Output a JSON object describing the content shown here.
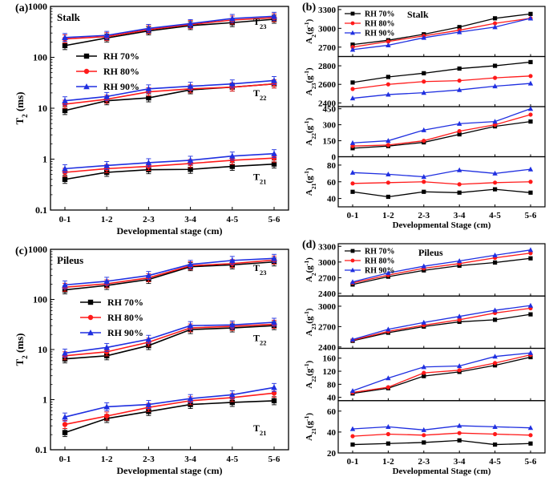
{
  "colors": {
    "rh70": "#000000",
    "rh80": "#ff1a1a",
    "rh90": "#1f2fe0"
  },
  "chart_data": [
    {
      "panel": "(a)",
      "title": "Stalk",
      "type": "line",
      "scale": "log",
      "xlabel": "Developmental stage (cm)",
      "ylabel": "T",
      "ylim": [
        0.1,
        1000
      ],
      "yticks": [
        "0.1",
        "1",
        "10",
        "100",
        "1000"
      ],
      "categories": [
        "0-1",
        "1-2",
        "2-3",
        "3-4",
        "4-5",
        "5-6"
      ],
      "legend": [
        "RH 70%",
        "RH 80%",
        "RH 90%"
      ],
      "annotations": [
        {
          "text": "T",
          "sub": "23"
        },
        {
          "text": "T",
          "sub": "22"
        },
        {
          "text": "T",
          "sub": "21"
        }
      ],
      "groups": [
        {
          "label_value": 500,
          "series": [
            [
              170,
              240,
              330,
              420,
              480,
              560
            ],
            [
              230,
              255,
              350,
              440,
              540,
              600
            ],
            [
              245,
              270,
              370,
              460,
              580,
              640
            ]
          ]
        },
        {
          "label_value": 20,
          "series": [
            [
              9,
              14,
              16,
              23,
              26,
              30
            ],
            [
              12,
              15,
              21,
              24,
              26,
              30
            ],
            [
              14,
              17,
              24,
              27,
              30,
              35
            ]
          ]
        },
        {
          "label_value": 0.45,
          "series": [
            [
              0.4,
              0.55,
              0.62,
              0.63,
              0.72,
              0.8
            ],
            [
              0.55,
              0.65,
              0.72,
              0.82,
              0.95,
              1.05
            ],
            [
              0.65,
              0.75,
              0.85,
              0.95,
              1.15,
              1.28
            ]
          ]
        }
      ]
    },
    {
      "panel": "(c)",
      "title": "Pileus",
      "type": "line",
      "scale": "log",
      "xlabel": "Developmental stage (cm)",
      "ylabel": "T",
      "ylim": [
        0.1,
        1000
      ],
      "yticks": [
        "0.1",
        "1",
        "10",
        "100",
        "1000"
      ],
      "categories": [
        "0-1",
        "1-2",
        "2-3",
        "3-4",
        "4-5",
        "5-6"
      ],
      "legend": [
        "RH 70%",
        "RH 80%",
        "RH 90%"
      ],
      "annotations": [
        {
          "text": "T",
          "sub": "23"
        },
        {
          "text": "T",
          "sub": "22"
        },
        {
          "text": "T",
          "sub": "21"
        }
      ],
      "groups": [
        {
          "label_value": 430,
          "series": [
            [
              155,
              190,
              250,
              450,
              490,
              560
            ],
            [
              175,
              205,
              270,
              470,
              520,
              610
            ],
            [
              195,
              230,
              300,
              500,
              600,
              660
            ]
          ]
        },
        {
          "label_value": 17,
          "series": [
            [
              6.5,
              7.5,
              12,
              25,
              27,
              30
            ],
            [
              7.5,
              9,
              14,
              27,
              29,
              32
            ],
            [
              8.5,
              11,
              16,
              30,
              31,
              35
            ]
          ]
        },
        {
          "label_value": 0.27,
          "series": [
            [
              0.22,
              0.42,
              0.58,
              0.8,
              0.88,
              0.95
            ],
            [
              0.32,
              0.47,
              0.7,
              0.95,
              1.1,
              1.35
            ],
            [
              0.45,
              0.72,
              0.8,
              1.05,
              1.25,
              1.75
            ]
          ]
        }
      ]
    },
    {
      "panel": "(b)",
      "title": "Stalk",
      "type": "line",
      "stacked_panels": true,
      "xlabel": "Developmental Stage (cm)",
      "categories": [
        "0-1",
        "1-2",
        "2-3",
        "3-4",
        "4-5",
        "5-6"
      ],
      "legend": [
        "RH 70%",
        "RH 80%",
        "RH 90%"
      ],
      "subplots": [
        {
          "ylabel": {
            "text": "A",
            "sub": "2",
            "unit": "(g",
            "sup": "-1",
            "close": ")"
          },
          "ylim": [
            2550,
            3350
          ],
          "yticks": [
            2700,
            3000,
            3300
          ],
          "series": [
            [
              2740,
              2810,
              2905,
              3020,
              3160,
              3230
            ],
            [
              2700,
              2790,
              2880,
              2970,
              3080,
              3160
            ],
            [
              2660,
              2730,
              2850,
              2940,
              3020,
              3160
            ]
          ]
        },
        {
          "ylabel": {
            "text": "A",
            "sub": "23",
            "unit": "(g",
            "sup": "-1",
            "close": ")"
          },
          "ylim": [
            2360,
            2900
          ],
          "yticks": [
            2400,
            2600,
            2800
          ],
          "series": [
            [
              2620,
              2680,
              2720,
              2770,
              2800,
              2840
            ],
            [
              2550,
              2600,
              2630,
              2640,
              2670,
              2690
            ],
            [
              2450,
              2490,
              2510,
              2540,
              2580,
              2610
            ]
          ]
        },
        {
          "ylabel": {
            "text": "A",
            "sub": "22",
            "unit": "(g",
            "sup": "-1",
            "close": ")"
          },
          "ylim": [
            0,
            470
          ],
          "yticks": [
            0,
            150,
            300,
            450
          ],
          "series": [
            [
              80,
              100,
              135,
              210,
              285,
              330
            ],
            [
              100,
              110,
              150,
              240,
              300,
              395
            ],
            [
              130,
              150,
              250,
              310,
              330,
              450
            ]
          ]
        },
        {
          "ylabel": {
            "text": "A",
            "sub": "21",
            "unit": "(g",
            "sup": "-1",
            "close": ")"
          },
          "ylim": [
            30,
            90
          ],
          "yticks": [
            40,
            60,
            80
          ],
          "series": [
            [
              48,
              42,
              48,
              47,
              51,
              47
            ],
            [
              58,
              59,
              60,
              57,
              59,
              60
            ],
            [
              71,
              69,
              66,
              74,
              70,
              75
            ]
          ]
        }
      ]
    },
    {
      "panel": "(d)",
      "title": "Pileus",
      "type": "line",
      "stacked_panels": true,
      "xlabel": "Developmental Stage (cm)",
      "categories": [
        "0-1",
        "1-2",
        "2-3",
        "3-4",
        "4-5",
        "5-6"
      ],
      "legend": [
        "RH 70%",
        "RH 80%",
        "RH 90%"
      ],
      "subplots": [
        {
          "ylabel": {
            "text": "A",
            "sub": "2",
            "unit": "(g",
            "sup": "-1",
            "close": ")"
          },
          "ylim": [
            2350,
            3350
          ],
          "yticks": [
            2400,
            2700,
            3000,
            3300
          ],
          "series": [
            [
              2570,
              2720,
              2840,
              2930,
              2990,
              3070
            ],
            [
              2600,
              2750,
              2880,
              2970,
              3080,
              3170
            ],
            [
              2620,
              2790,
              2920,
              3020,
              3130,
              3230
            ]
          ]
        },
        {
          "ylabel": {
            "text": "A",
            "sub": "23",
            "unit": "(g",
            "sup": "-1",
            "close": ")"
          },
          "ylim": [
            2380,
            3150
          ],
          "yticks": [
            2400,
            2700,
            3000
          ],
          "series": [
            [
              2490,
              2610,
              2700,
              2770,
              2800,
              2880
            ],
            [
              2500,
              2630,
              2720,
              2800,
              2900,
              2970
            ],
            [
              2510,
              2660,
              2760,
              2850,
              2940,
              3010
            ]
          ]
        },
        {
          "ylabel": {
            "text": "A",
            "sub": "22",
            "unit": "(g",
            "sup": "-1",
            "close": ")"
          },
          "ylim": [
            30,
            190
          ],
          "yticks": [
            40,
            80,
            120,
            160
          ],
          "series": [
            [
              52,
              68,
              105,
              118,
              138,
              163
            ],
            [
              55,
              71,
              115,
              123,
              145,
              170
            ],
            [
              60,
              99,
              133,
              136,
              165,
              176
            ]
          ]
        },
        {
          "ylabel": {
            "text": "A",
            "sub": "21",
            "unit": "(g",
            "sup": "-1",
            "close": ")"
          },
          "ylim": [
            20,
            70
          ],
          "yticks": [
            20,
            40,
            60
          ],
          "series": [
            [
              28,
              29,
              30,
              32,
              28,
              29
            ],
            [
              36,
              38,
              37,
              39,
              38,
              37
            ],
            [
              43,
              45,
              42,
              46,
              45,
              44
            ]
          ]
        }
      ]
    }
  ]
}
